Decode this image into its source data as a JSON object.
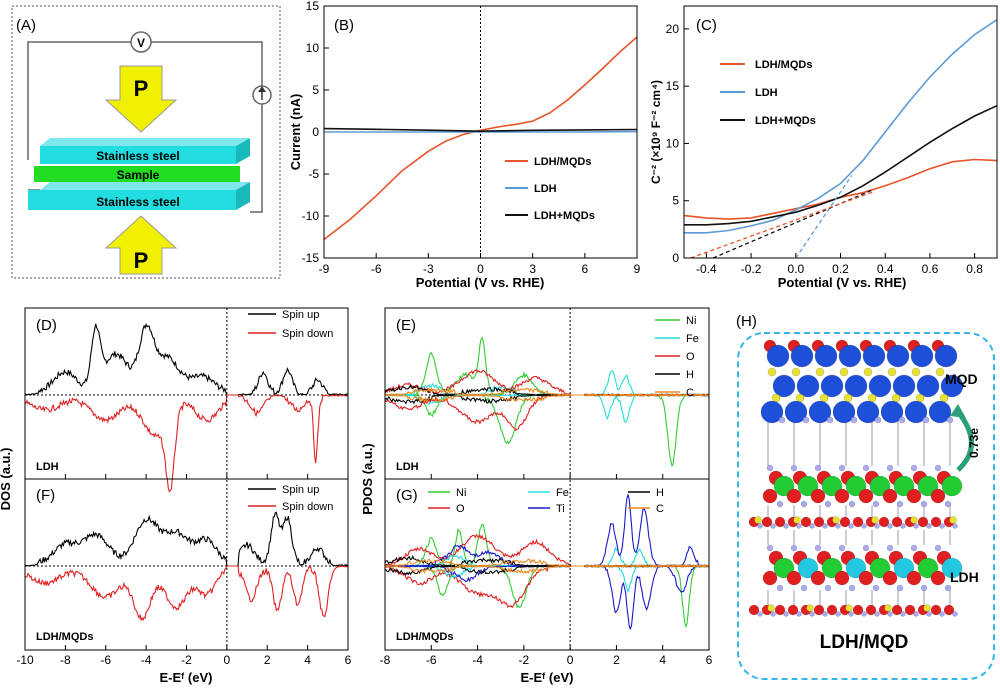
{
  "panelA": {
    "label": "(A)",
    "voltmeter": "V",
    "force_label": "P",
    "layers": [
      "Stainless steel",
      "Sample",
      "Stainless steel"
    ]
  },
  "colors": {
    "lmqd": "#e8532a",
    "ldh": "#5b9bd5",
    "mix": "#111111",
    "spin_up": "#000000",
    "spin_down": "#e02020",
    "Ni": "#33cc33",
    "Fe": "#22dddd",
    "O": "#e02020",
    "H": "#000000",
    "C": "#ee8822",
    "Ti": "#1a1acc",
    "cyan_box": "#33b5e5"
  },
  "chart_data": [
    {
      "panel": "(B)",
      "type": "line",
      "xlabel": "Potential (V vs. RHE)",
      "ylabel": "Current (nA)",
      "xlim": [
        -9,
        9
      ],
      "ylim": [
        -15,
        15
      ],
      "xticks": [
        -9,
        -6,
        -3,
        0,
        3,
        6,
        9
      ],
      "yticks": [
        -15,
        -10,
        -5,
        0,
        5,
        10,
        15
      ],
      "legend": [
        "LDH/MQDs",
        "LDH",
        "LDH+MQDs"
      ],
      "series": [
        {
          "name": "LDH/MQDs",
          "x": [
            -9,
            -7.5,
            -6,
            -4.5,
            -3,
            -2,
            -1,
            0,
            1,
            2,
            3,
            4,
            5,
            6,
            7,
            8,
            9
          ],
          "y": [
            -12.8,
            -10.4,
            -7.6,
            -4.6,
            -2.3,
            -1.1,
            -0.3,
            0.2,
            0.6,
            0.9,
            1.3,
            2.3,
            3.8,
            5.6,
            7.5,
            9.5,
            11.3
          ]
        },
        {
          "name": "LDH",
          "x": [
            -9,
            -6,
            -3,
            0,
            3,
            6,
            9
          ],
          "y": [
            0,
            0,
            0,
            0,
            0,
            0,
            0.05
          ]
        },
        {
          "name": "LDH+MQDs",
          "x": [
            -9,
            -6,
            -3,
            0,
            3,
            6,
            9
          ],
          "y": [
            0.4,
            0.32,
            0.22,
            0.1,
            0.2,
            0.25,
            0.3
          ]
        }
      ]
    },
    {
      "panel": "(C)",
      "type": "line",
      "xlabel": "Potential (V vs. RHE)",
      "ylabel": "C⁻² (×10⁹ F⁻² cm⁴)",
      "xlim": [
        -0.5,
        0.9
      ],
      "ylim": [
        0,
        22
      ],
      "xticks": [
        -0.4,
        -0.2,
        0.0,
        0.2,
        0.4,
        0.6,
        0.8
      ],
      "yticks": [
        0,
        5,
        10,
        15,
        20
      ],
      "legend": [
        "LDH/MQDs",
        "LDH",
        "LDH+MQDs"
      ],
      "series": [
        {
          "name": "LDH/MQDs",
          "x": [
            -0.5,
            -0.4,
            -0.3,
            -0.2,
            -0.1,
            0.0,
            0.1,
            0.2,
            0.3,
            0.4,
            0.5,
            0.6,
            0.7,
            0.8,
            0.9
          ],
          "y": [
            3.7,
            3.5,
            3.4,
            3.5,
            3.9,
            4.3,
            4.7,
            5.3,
            5.7,
            6.3,
            7.0,
            7.8,
            8.4,
            8.6,
            8.5
          ]
        },
        {
          "name": "LDH",
          "x": [
            -0.5,
            -0.4,
            -0.3,
            -0.2,
            -0.1,
            0.0,
            0.1,
            0.2,
            0.3,
            0.4,
            0.5,
            0.6,
            0.7,
            0.8,
            0.9
          ],
          "y": [
            2.2,
            2.2,
            2.4,
            2.8,
            3.3,
            4.2,
            5.2,
            6.5,
            8.5,
            11.0,
            13.5,
            15.8,
            17.8,
            19.5,
            20.8
          ]
        },
        {
          "name": "LDH+MQDs",
          "x": [
            -0.5,
            -0.4,
            -0.3,
            -0.2,
            -0.1,
            0.0,
            0.1,
            0.2,
            0.3,
            0.4,
            0.5,
            0.6,
            0.7,
            0.8,
            0.9
          ],
          "y": [
            2.9,
            2.9,
            3.0,
            3.2,
            3.6,
            4.0,
            4.6,
            5.3,
            6.3,
            7.5,
            8.8,
            10.1,
            11.3,
            12.4,
            13.3
          ]
        }
      ]
    },
    {
      "panel": "(D)/(F)",
      "type": "line",
      "ylabel": "DOS (a.u.)",
      "xlabel": "E-Eᶠ (eV)",
      "xlim": [
        -10,
        6
      ],
      "xticks": [
        -10,
        -8,
        -6,
        -4,
        -2,
        0,
        2,
        4,
        6
      ],
      "panels": [
        "(D)",
        "(F)"
      ],
      "sublabels": [
        "LDH",
        "LDH/MQDs"
      ],
      "legend": [
        "Spin up",
        "Spin down"
      ]
    },
    {
      "panel": "(E)/(G)",
      "type": "line",
      "ylabel": "PDOS (a.u.)",
      "xlabel": "E-Eᶠ (eV)",
      "xlim": [
        -8,
        6
      ],
      "xticks": [
        -8,
        -6,
        -4,
        -2,
        0,
        2,
        4,
        6
      ],
      "panels": [
        "(E)",
        "(G)"
      ],
      "sublabels": [
        "LDH",
        "LDH/MQDs"
      ],
      "legendE": [
        "Ni",
        "Fe",
        "O",
        "H",
        "C"
      ],
      "legendG": [
        "Ni",
        "O",
        "Fe",
        "Ti",
        "H",
        "C"
      ]
    }
  ],
  "panelH": {
    "label": "(H)",
    "mqd": "MQD",
    "ldh": "LDH",
    "transfer": "0.73e",
    "caption": "LDH/MQD"
  }
}
